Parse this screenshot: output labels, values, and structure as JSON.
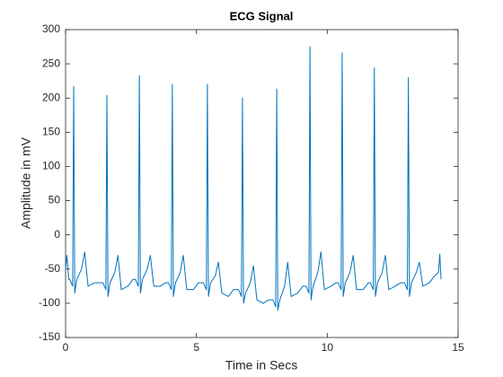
{
  "chart_data": {
    "type": "line",
    "title": "ECG Signal",
    "x_label": "Time in Secs",
    "y_label": "Amplitude in mV",
    "x": [
      0,
      0.05,
      0.12,
      0.16,
      0.27,
      0.31,
      0.35,
      0.43,
      0.61,
      0.73,
      0.86,
      1.11,
      1.31,
      1.43,
      1.54,
      1.58,
      1.62,
      1.7,
      1.88,
      2.0,
      2.13,
      2.38,
      2.58,
      2.67,
      2.78,
      2.82,
      2.86,
      2.94,
      3.12,
      3.24,
      3.37,
      3.62,
      3.82,
      3.93,
      4.04,
      4.08,
      4.12,
      4.2,
      4.38,
      4.5,
      4.63,
      4.88,
      5.08,
      5.27,
      5.38,
      5.42,
      5.46,
      5.54,
      5.72,
      5.84,
      5.97,
      6.22,
      6.42,
      6.61,
      6.72,
      6.76,
      6.8,
      6.88,
      7.06,
      7.18,
      7.31,
      7.56,
      7.76,
      7.92,
      8.03,
      8.07,
      8.11,
      8.19,
      8.37,
      8.49,
      8.62,
      8.87,
      9.07,
      9.19,
      9.3,
      9.34,
      9.38,
      9.46,
      9.64,
      9.76,
      9.89,
      10.14,
      10.34,
      10.42,
      10.53,
      10.57,
      10.61,
      10.69,
      10.87,
      10.99,
      11.12,
      11.37,
      11.57,
      11.65,
      11.76,
      11.8,
      11.84,
      11.92,
      12.1,
      12.22,
      12.35,
      12.6,
      12.8,
      12.95,
      13.06,
      13.1,
      13.14,
      13.22,
      13.4,
      13.52,
      13.65,
      13.9,
      14.1,
      14.25,
      14.3,
      14.35
    ],
    "series": [
      {
        "name": "ECG",
        "color": "#0072bd",
        "values": [
          -50,
          -30,
          -65,
          -65,
          -75,
          217,
          -85,
          -65,
          -50,
          -25,
          -75,
          -70,
          -70,
          -70,
          -80,
          204,
          -90,
          -70,
          -55,
          -30,
          -80,
          -75,
          -65,
          -65,
          -75,
          233,
          -85,
          -65,
          -50,
          -30,
          -75,
          -75,
          -70,
          -70,
          -80,
          220,
          -90,
          -70,
          -55,
          -30,
          -80,
          -80,
          -70,
          -70,
          -80,
          220,
          -90,
          -70,
          -60,
          -40,
          -85,
          -90,
          -80,
          -80,
          -90,
          200,
          -100,
          -85,
          -70,
          -45,
          -95,
          -100,
          -95,
          -95,
          -105,
          213,
          -110,
          -95,
          -75,
          -40,
          -90,
          -85,
          -75,
          -75,
          -85,
          275,
          -95,
          -75,
          -55,
          -25,
          -80,
          -75,
          -70,
          -70,
          -80,
          266,
          -90,
          -70,
          -55,
          -30,
          -80,
          -80,
          -70,
          -70,
          -80,
          244,
          -90,
          -70,
          -55,
          -30,
          -80,
          -75,
          -70,
          -70,
          -80,
          230,
          -90,
          -70,
          -55,
          -40,
          -75,
          -70,
          -60,
          -55,
          -28,
          -65
        ]
      }
    ],
    "xlim": [
      0,
      15
    ],
    "xticks": [
      0,
      5,
      10,
      15
    ],
    "ylim": [
      -150,
      300
    ],
    "yticks": [
      -150,
      -100,
      -50,
      0,
      50,
      100,
      150,
      200,
      250,
      300
    ]
  }
}
